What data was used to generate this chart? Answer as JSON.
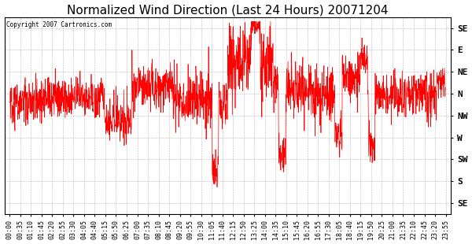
{
  "title": "Normalized Wind Direction (Last 24 Hours) 20071204",
  "copyright_text": "Copyright 2007 Cartronics.com",
  "line_color": "#ff0000",
  "background_color": "#ffffff",
  "plot_bg_color": "#ffffff",
  "grid_color": "#888888",
  "ytick_labels": [
    "SE",
    "S",
    "SW",
    "W",
    "NW",
    "N",
    "NE",
    "E",
    "SE"
  ],
  "ytick_values": [
    0,
    1,
    2,
    3,
    4,
    5,
    6,
    7,
    8
  ],
  "ylim": [
    -0.5,
    8.5
  ],
  "title_fontsize": 11,
  "xlabel_fontsize": 6,
  "ylabel_fontsize": 8,
  "xtick_labels": [
    "00:00",
    "00:35",
    "01:10",
    "01:45",
    "02:20",
    "02:55",
    "03:30",
    "04:05",
    "04:40",
    "05:15",
    "05:50",
    "06:25",
    "07:00",
    "07:35",
    "08:10",
    "08:45",
    "09:20",
    "09:55",
    "10:30",
    "11:05",
    "11:40",
    "12:15",
    "12:50",
    "13:25",
    "14:00",
    "14:35",
    "15:10",
    "15:45",
    "16:20",
    "16:55",
    "17:30",
    "18:05",
    "18:40",
    "19:15",
    "19:50",
    "20:25",
    "21:00",
    "21:35",
    "22:10",
    "22:45",
    "23:20",
    "23:55"
  ],
  "n_points": 2000,
  "seed": 42
}
